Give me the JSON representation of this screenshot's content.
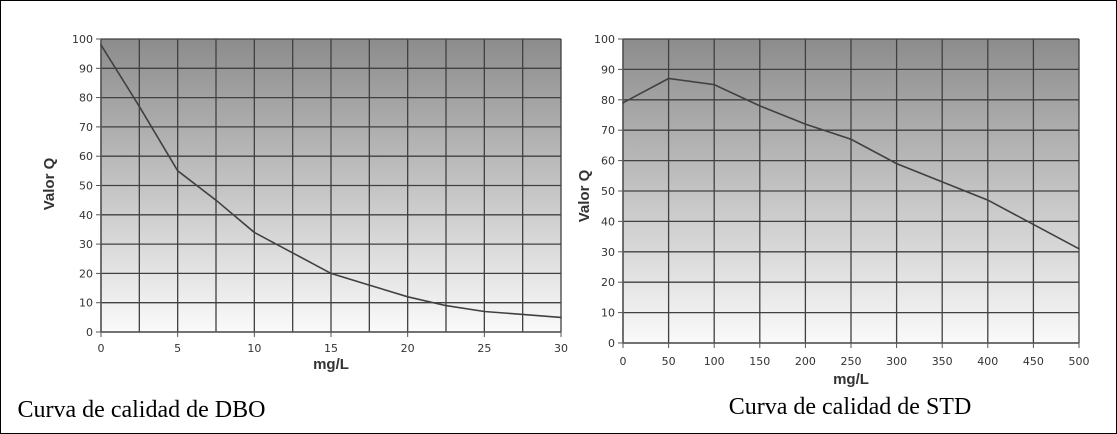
{
  "chart_data": [
    {
      "type": "line",
      "caption": "Curva de calidad de DBO",
      "xlabel": "mg/L",
      "ylabel": "Valor Q",
      "xlim": [
        0,
        30
      ],
      "ylim": [
        0,
        100
      ],
      "x_ticks": [
        0,
        5,
        10,
        15,
        20,
        25,
        30
      ],
      "y_ticks": [
        0,
        10,
        20,
        30,
        40,
        50,
        60,
        70,
        80,
        90,
        100
      ],
      "x_grid": [
        0,
        2.5,
        5,
        7.5,
        10,
        12.5,
        15,
        17.5,
        20,
        22.5,
        25,
        27.5,
        30
      ],
      "grid": true,
      "series": [
        {
          "x": [
            0,
            2.5,
            5,
            7.5,
            10,
            12.5,
            15,
            17.5,
            20,
            22.5,
            25,
            27.5,
            30
          ],
          "y": [
            98,
            77,
            55,
            45,
            34,
            27,
            20,
            16,
            12,
            9,
            7,
            6,
            5
          ]
        }
      ],
      "colors": {
        "line": "#404040",
        "grid": "#404040",
        "plot_top": "#8c8c8c",
        "plot_bottom": "#fafafa"
      }
    },
    {
      "type": "line",
      "caption": "Curva de calidad de STD",
      "xlabel": "mg/L",
      "ylabel": "Valor Q",
      "xlim": [
        0,
        500
      ],
      "ylim": [
        0,
        100
      ],
      "x_ticks": [
        0,
        50,
        100,
        150,
        200,
        250,
        300,
        350,
        400,
        450,
        500
      ],
      "y_ticks": [
        0,
        10,
        20,
        30,
        40,
        50,
        60,
        70,
        80,
        90,
        100
      ],
      "x_grid": [
        0,
        50,
        100,
        150,
        200,
        250,
        300,
        350,
        400,
        450,
        500
      ],
      "grid": true,
      "series": [
        {
          "x": [
            0,
            50,
            100,
            150,
            200,
            250,
            300,
            350,
            400,
            450,
            500
          ],
          "y": [
            79,
            87,
            85,
            78,
            72,
            67,
            59,
            53,
            47,
            39,
            31
          ]
        }
      ],
      "colors": {
        "line": "#404040",
        "grid": "#404040",
        "plot_top": "#8c8c8c",
        "plot_bottom": "#fafafa"
      }
    }
  ]
}
